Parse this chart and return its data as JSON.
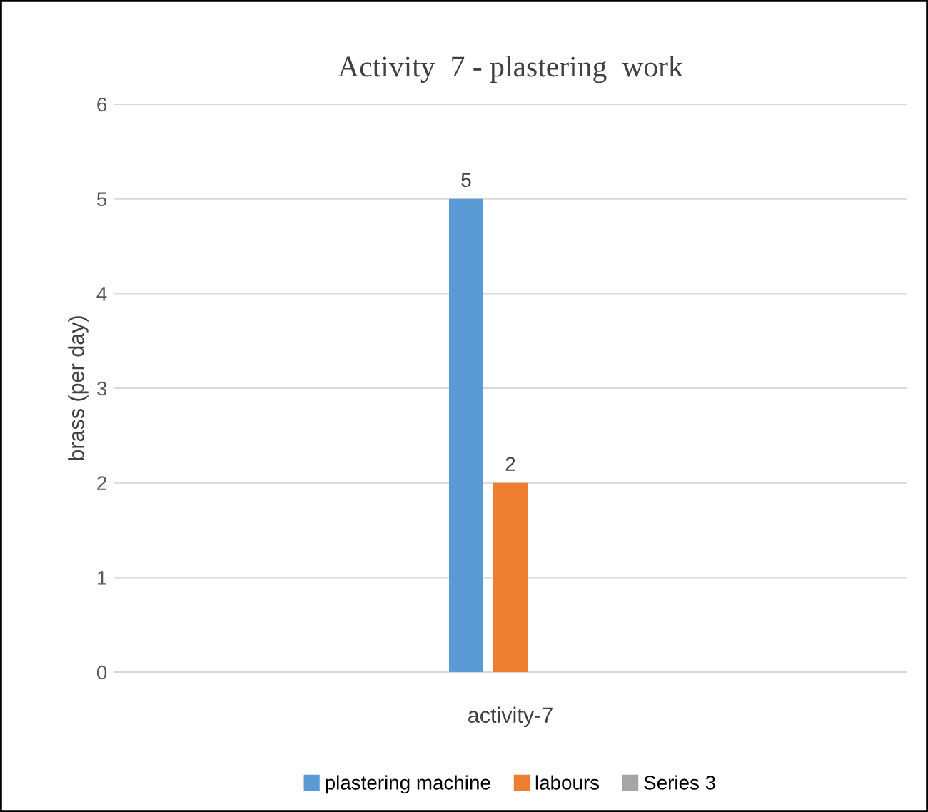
{
  "chart_data": {
    "type": "bar",
    "title": "Activity  7 - plastering  work",
    "ylabel": "brass (per day)",
    "xlabel": "activity-7",
    "categories": [
      null
    ],
    "series": [
      {
        "name": "plastering machine",
        "color": "#5b9bd5",
        "values": [
          5
        ]
      },
      {
        "name": "labours",
        "color": "#ed7d31",
        "values": [
          2
        ]
      },
      {
        "name": "Series 3",
        "color": "#a5a5a5",
        "values": [
          null
        ]
      }
    ],
    "ylim": [
      0,
      6
    ],
    "yticks": [
      0,
      1,
      2,
      3,
      4,
      5,
      6
    ],
    "grid": "y",
    "legend": "bottom",
    "data_labels": true
  }
}
